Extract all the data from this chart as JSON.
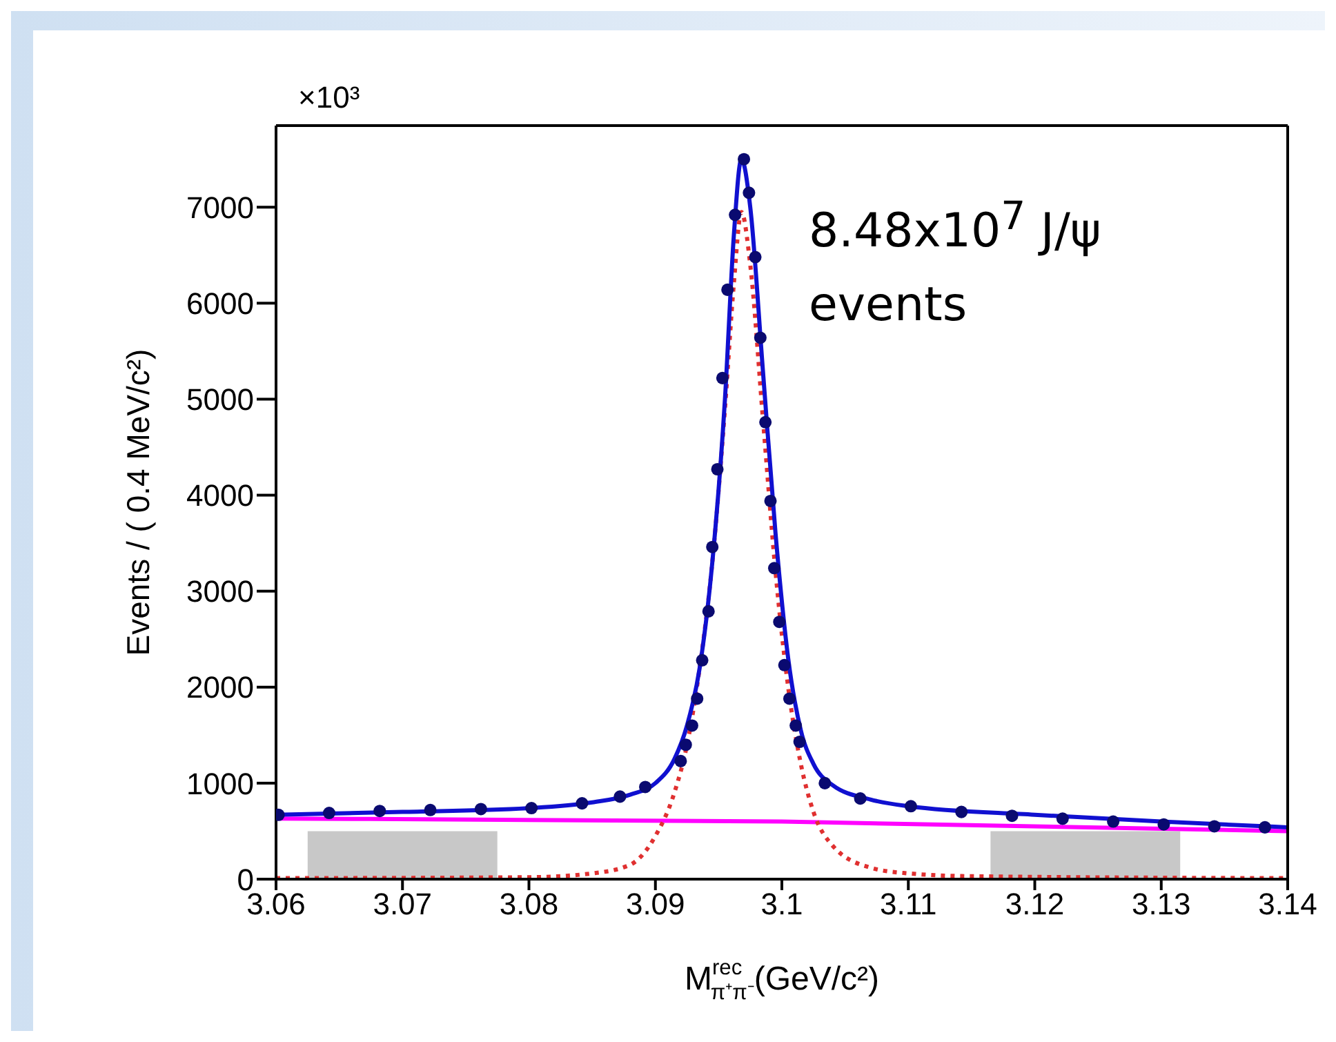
{
  "chart_data": {
    "type": "scatter",
    "xlabel": "M$^{rec}$$_{π⁺π⁻}$(GeV/c²)",
    "ylabel": "Events / ( 0.4 MeV/c²)",
    "annotations": [
      "×10³",
      "8.48x10$^{7}$ J/ψ events"
    ],
    "xlim": [
      3.06,
      3.14
    ],
    "xticks": [
      3.06,
      3.07,
      3.08,
      3.09,
      3.1,
      3.11,
      3.12,
      3.13,
      3.14
    ],
    "ylim": [
      0,
      7850
    ],
    "yticks": [
      0,
      1000,
      2000,
      3000,
      4000,
      5000,
      6000,
      7000
    ],
    "bands": [
      {
        "axis": "x",
        "from": 3.0625,
        "to": 3.0775,
        "color": "#c8c8c8"
      },
      {
        "axis": "x",
        "from": 3.1165,
        "to": 3.1315,
        "color": "#c8c8c8"
      }
    ],
    "series": [
      {
        "type": "line",
        "color": "#ff00ff",
        "line_style": "solid",
        "x": [
          3.06,
          3.1,
          3.14
        ],
        "values": [
          630,
          600,
          500
        ]
      },
      {
        "type": "line",
        "color": "#e03030",
        "line_style": "dotted",
        "x": [
          3.06,
          3.08,
          3.085,
          3.088,
          3.09,
          3.0915,
          3.0925,
          3.0935,
          3.0945,
          3.0955,
          3.0962,
          3.0968,
          3.0975,
          3.0985,
          3.0995,
          3.1005,
          3.1015,
          3.1025,
          3.104,
          3.107,
          3.11,
          3.115,
          3.14
        ],
        "values": [
          10,
          20,
          60,
          150,
          450,
          900,
          1400,
          2200,
          3300,
          4900,
          6200,
          6950,
          6400,
          4800,
          3200,
          2000,
          1200,
          700,
          350,
          120,
          60,
          30,
          10
        ]
      },
      {
        "type": "line",
        "color": "#1010d0",
        "line_style": "solid",
        "x": [
          3.06,
          3.07,
          3.08,
          3.085,
          3.088,
          3.09,
          3.0915,
          3.0925,
          3.0935,
          3.0945,
          3.0955,
          3.0962,
          3.0968,
          3.0975,
          3.0985,
          3.0995,
          3.1005,
          3.1015,
          3.1025,
          3.104,
          3.107,
          3.11,
          3.12,
          3.13,
          3.14
        ],
        "values": [
          670,
          700,
          740,
          800,
          880,
          1000,
          1250,
          1600,
          2200,
          3300,
          5000,
          6700,
          7500,
          7000,
          5300,
          3600,
          2300,
          1550,
          1200,
          980,
          830,
          760,
          670,
          600,
          540
        ]
      },
      {
        "color": "#0a0a70",
        "marker": "circle",
        "x": [
          3.0602,
          3.0642,
          3.0682,
          3.0722,
          3.0762,
          3.0802,
          3.0842,
          3.0872,
          3.0892,
          3.092,
          3.0924,
          3.0929,
          3.0933,
          3.0937,
          3.0942,
          3.0945,
          3.0949,
          3.0953,
          3.0957,
          3.0963,
          3.097,
          3.0974,
          3.0979,
          3.0983,
          3.0987,
          3.0991,
          3.0994,
          3.0998,
          3.1002,
          3.1006,
          3.1011,
          3.1014,
          3.1034,
          3.1062,
          3.1102,
          3.1142,
          3.1182,
          3.1222,
          3.1262,
          3.1302,
          3.1342,
          3.1382
        ],
        "values": [
          670,
          690,
          710,
          720,
          730,
          740,
          790,
          860,
          960,
          1230,
          1400,
          1600,
          1880,
          2280,
          2790,
          3460,
          4270,
          5220,
          6140,
          6920,
          7500,
          7150,
          6480,
          5640,
          4760,
          3940,
          3240,
          2680,
          2230,
          1880,
          1600,
          1430,
          1000,
          840,
          760,
          700,
          660,
          630,
          600,
          570,
          550,
          540
        ]
      }
    ]
  }
}
